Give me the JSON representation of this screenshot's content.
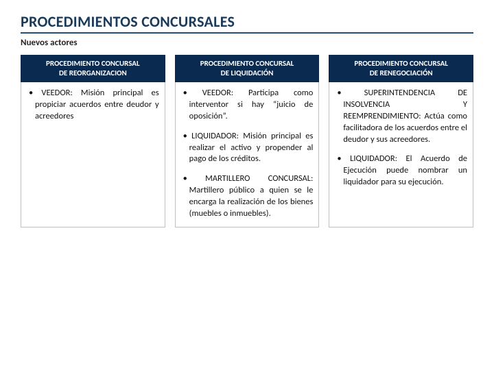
{
  "title": "PROCEDIMIENTOS CONCURSALES",
  "subtitle": "Nuevos actores",
  "header_bg": "#0a2a50",
  "header_fg": "#ffffff",
  "title_color": "#1a3a5c",
  "underline_color": "#1f4e79",
  "columns": [
    {
      "header_line1": "PROCEDIMIENTO CONCURSAL",
      "header_line2": "DE REORGANIZACION",
      "items": [
        {
          "term": "VEEDOR:",
          "text": "Misión principal es propiciar acuerdos entre deudor y acreedores"
        }
      ]
    },
    {
      "header_line1": "PROCEDIMIENTO CONCURSAL",
      "header_line2": "DE LIQUIDACIÓN",
      "items": [
        {
          "term": "VEEDOR:",
          "text": "Participa como interventor si hay “juicio de oposición”."
        },
        {
          "term": "LIQUIDADOR:",
          "text": "Misión principal es realizar el activo y propender al pago de los créditos."
        },
        {
          "term": "MARTILLERO CONCURSAL:",
          "text": "Martillero público a quien se le encarga la realización de los bienes (muebles o inmuebles)."
        }
      ]
    },
    {
      "header_line1": "PROCEDIMIENTO CONCURSAL",
      "header_line2": "DE RENEGOCIACIÓN",
      "items": [
        {
          "term": "SUPERINTENDENCIA DE INSOLVENCIA Y REEMPRENDIMIENTO:",
          "text": "Actúa como facilitadora de los acuerdos entre el deudor y sus acreedores."
        },
        {
          "term": "LIQUIDADOR:",
          "text": "El Acuerdo de Ejecución puede nombrar un liquidador para su ejecución."
        }
      ]
    }
  ]
}
